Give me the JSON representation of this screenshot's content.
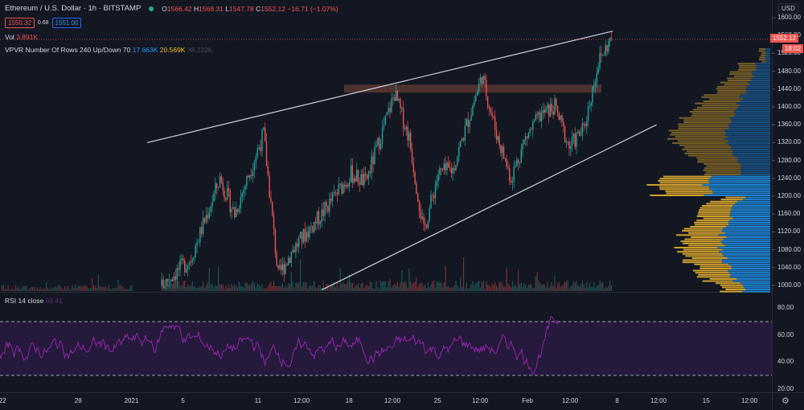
{
  "header": {
    "symbol_title": "Ethereum / U.S. Dollar · 1h · BITSTAMP",
    "status_dot_color": "#26a69a",
    "ohlc": {
      "o_label": "O",
      "o": "1566.42",
      "h_label": "H",
      "h": "1568.31",
      "l_label": "L",
      "l": "1547.78",
      "c_label": "C",
      "c": "1552.12",
      "change": "−16.71 (−1.07%)"
    },
    "bid": "1550.32",
    "spread": "0.68",
    "ask": "1551.00"
  },
  "indicators": {
    "vol": {
      "label": "Vol",
      "value": "3.891K"
    },
    "vpvr": {
      "label": "VPVR Number Of Rows 240 Up/Down 70",
      "up": "17.663K",
      "down": "20.569K",
      "total": "38.232K"
    },
    "rsi": {
      "label": "RSI 14 close",
      "value": "69.41"
    }
  },
  "price_axis": {
    "currency": "USD",
    "ticks": [
      "1600.00",
      "1560.00",
      "1520.00",
      "1480.00",
      "1440.00",
      "1400.00",
      "1360.00",
      "1320.00",
      "1280.00",
      "1240.00",
      "1200.00",
      "1160.00",
      "1120.00",
      "1080.00",
      "1040.00",
      "1000.00"
    ],
    "last_price": "1552.12",
    "countdown": "18:02"
  },
  "rsi_axis": {
    "ticks": [
      "80.00",
      "60.00",
      "40.00",
      "20.00"
    ]
  },
  "time_axis": {
    "ticks": [
      "22",
      "28",
      "2021",
      "5",
      "11",
      "12:00",
      "18",
      "12:00",
      "25",
      "12:00",
      "Feb",
      "12:00",
      "8",
      "12:00",
      "15",
      "12:00"
    ]
  },
  "colors": {
    "up": "#26a69a",
    "down": "#ef5350",
    "background": "#131722",
    "rsi_line": "#9c27b0",
    "rsi_band": "#2a1a44",
    "resistance_zone": "#5d3a32",
    "vpvr_up": "#2196f3",
    "vpvr_down": "#f5b82e",
    "trendline": "#d1d4dc"
  },
  "chart_data": [
    {
      "type": "candlestick",
      "title": "Ethereum / U.S. Dollar 1h BITSTAMP",
      "ylabel": "USD",
      "ylim": [
        990,
        1610
      ],
      "x_ticks": [
        "22",
        "28",
        "2021",
        "5",
        "11",
        "12:00",
        "18",
        "12:00",
        "25",
        "12:00",
        "Feb",
        "12:00",
        "8",
        "12:00",
        "15",
        "12:00"
      ],
      "price_path": [
        {
          "t": "Jan 3",
          "price": 1000
        },
        {
          "t": "Jan 5",
          "price": 1060
        },
        {
          "t": "Jan 7",
          "price": 1240
        },
        {
          "t": "Jan 8",
          "price": 1160
        },
        {
          "t": "Jan 10",
          "price": 1340
        },
        {
          "t": "Jan 11",
          "price": 1020
        },
        {
          "t": "Jan 12",
          "price": 1080
        },
        {
          "t": "Jan 14",
          "price": 1160
        },
        {
          "t": "Jan 16",
          "price": 1250
        },
        {
          "t": "Jan 17",
          "price": 1230
        },
        {
          "t": "Jan 19",
          "price": 1430
        },
        {
          "t": "Jan 20",
          "price": 1330
        },
        {
          "t": "Jan 21",
          "price": 1120
        },
        {
          "t": "Jan 22",
          "price": 1250
        },
        {
          "t": "Jan 23",
          "price": 1260
        },
        {
          "t": "Jan 25",
          "price": 1470
        },
        {
          "t": "Jan 26",
          "price": 1340
        },
        {
          "t": "Jan 27",
          "price": 1240
        },
        {
          "t": "Jan 28",
          "price": 1330
        },
        {
          "t": "Jan 29",
          "price": 1380
        },
        {
          "t": "Jan 30",
          "price": 1400
        },
        {
          "t": "Jan 31",
          "price": 1310
        },
        {
          "t": "Feb 1",
          "price": 1350
        },
        {
          "t": "Feb 2",
          "price": 1500
        },
        {
          "t": "Feb 3",
          "price": 1560
        }
      ],
      "annotations": [
        {
          "type": "trendline",
          "name": "upper rising wedge",
          "from": {
            "t": "Jan 2",
            "price": 1320
          },
          "to": {
            "t": "Feb 3",
            "price": 1570
          }
        },
        {
          "type": "trendline",
          "name": "lower rising wedge",
          "from": {
            "t": "Jan 14",
            "price": 990
          },
          "to": {
            "t": "Feb 6",
            "price": 1360
          }
        },
        {
          "type": "zone",
          "name": "resistance",
          "price_low": 1432,
          "price_high": 1450
        }
      ]
    },
    {
      "type": "line",
      "title": "RSI 14 close",
      "ylim": [
        18,
        85
      ],
      "bands": [
        30,
        70
      ],
      "last_value": 69.41
    },
    {
      "type": "bar",
      "title": "VPVR Number Of Rows 240 Up/Down 70",
      "series": [
        {
          "name": "Up",
          "total": "17.663K"
        },
        {
          "name": "Down",
          "total": "20.569K"
        }
      ],
      "total": "38.232K"
    }
  ]
}
